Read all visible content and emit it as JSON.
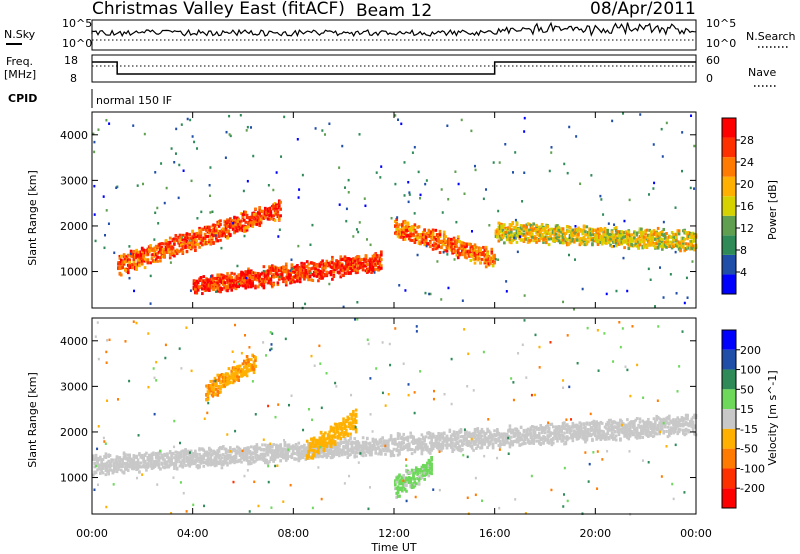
{
  "header": {
    "station": "Christmas Valley East (fitACF)",
    "beam": "Beam 12",
    "date": "08/Apr/2011"
  },
  "top_panels": {
    "nsky_label": "N.Sky",
    "nsearch_label": "N.Search",
    "freq_label_line1": "Freq.",
    "freq_label_line2": "[MHz]",
    "nave_label": "Nave",
    "cpid_label": "CPID",
    "cpid_value": "normal 150 IF",
    "noise_ticks_left": [
      "10^5",
      "10^0"
    ],
    "noise_ticks_right": [
      "10^5",
      "10^0"
    ],
    "freq_ticks": [
      "18",
      "8"
    ],
    "nave_ticks": [
      "60",
      "0"
    ]
  },
  "colors": {
    "power_scale": [
      "#0000ff",
      "#1f4ea8",
      "#2e8b57",
      "#5f9f4f",
      "#d6d200",
      "#ffb000",
      "#ff7a00",
      "#ff3000",
      "#ff0000"
    ],
    "velocity_scale": [
      "#0000ff",
      "#1f4ea8",
      "#2e8b57",
      "#6dd85a",
      "#c8c8c8",
      "#ffb000",
      "#ff7a00",
      "#ff3000",
      "#ff0000"
    ]
  },
  "chart_data": [
    {
      "type": "heatmap",
      "title": "",
      "xlabel": "Time UT",
      "ylabel": "Slant Range [km]",
      "x_ticks": [
        "00:00",
        "04:00",
        "08:00",
        "12:00",
        "16:00",
        "20:00",
        "00:00"
      ],
      "y_ticks": [
        "1000",
        "2000",
        "3000",
        "4000"
      ],
      "x_range_hours": [
        0,
        24
      ],
      "y_range_km": [
        200,
        4500
      ],
      "colorbar": {
        "label": "Power [dB]",
        "ticks": [
          "4",
          "8",
          "12",
          "16",
          "20",
          "24",
          "28"
        ],
        "range": [
          0,
          30
        ]
      },
      "features": [
        {
          "name": "main F-region band",
          "t_start": 1.0,
          "t_end": 7.5,
          "range_start_km": 1150,
          "range_end_km": 2400,
          "power_db": 24
        },
        {
          "name": "midnight sector band",
          "t_start": 4.0,
          "t_end": 11.5,
          "range_start_km": 700,
          "range_end_km": 1250,
          "power_db": 26
        },
        {
          "name": "post-midnight descending band",
          "t_start": 12.0,
          "t_end": 16.0,
          "range_start_km": 2000,
          "range_end_km": 1300,
          "power_db": 22
        },
        {
          "name": "dawn band",
          "t_start": 16.0,
          "t_end": 24.0,
          "range_start_km": 1900,
          "range_end_km": 1700,
          "power_db": 16
        }
      ]
    },
    {
      "type": "heatmap",
      "title": "",
      "xlabel": "Time UT",
      "ylabel": "Slant Range [km]",
      "x_ticks": [
        "00:00",
        "04:00",
        "08:00",
        "12:00",
        "16:00",
        "20:00",
        "00:00"
      ],
      "y_ticks": [
        "1000",
        "2000",
        "3000",
        "4000"
      ],
      "x_range_hours": [
        0,
        24
      ],
      "y_range_km": [
        200,
        4500
      ],
      "colorbar": {
        "label": "Velocity [m s^-1]",
        "ticks": [
          "200",
          "100",
          "50",
          "15",
          "-15",
          "-50",
          "-100",
          "-200"
        ],
        "range": [
          -250,
          250
        ]
      },
      "features": [
        {
          "name": "ground scatter band",
          "t_start": 0.0,
          "t_end": 24.0,
          "range_start_km": 1300,
          "range_end_km": 2200,
          "velocity": 0
        },
        {
          "name": "evening flow patch",
          "t_start": 4.5,
          "t_end": 6.5,
          "range_start_km": 2900,
          "range_end_km": 3600,
          "velocity": -80
        },
        {
          "name": "midnight flow patch",
          "t_start": 8.5,
          "t_end": 10.5,
          "range_start_km": 1600,
          "range_end_km": 2300,
          "velocity": -60
        },
        {
          "name": "post-midnight green patch",
          "t_start": 12.0,
          "t_end": 13.5,
          "range_start_km": 800,
          "range_end_km": 1300,
          "velocity": 40
        }
      ]
    }
  ]
}
